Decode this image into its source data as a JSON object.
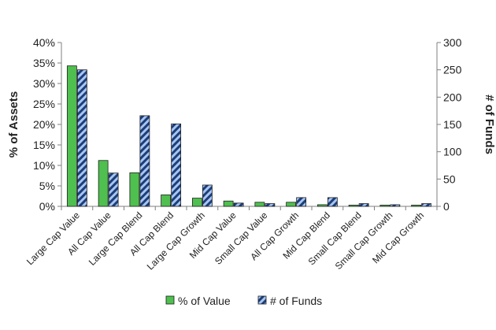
{
  "chart_data": {
    "type": "bar",
    "categories": [
      "Large Cap Value",
      "All Cap Value",
      "Large Cap Blend",
      "All Cap Blend",
      "Large Cap Growth",
      "Mid Cap Value",
      "Small Cap Value",
      "All Cap Growth",
      "Mid Cap Blend",
      "Small Cap Blend",
      "Small Cap Growth",
      "Mid Cap Growth"
    ],
    "series": [
      {
        "name": "% of Value",
        "axis": "left",
        "color": "#4fbf4f",
        "values": [
          34.3,
          11.2,
          8.2,
          2.8,
          2.0,
          1.3,
          1.0,
          1.0,
          0.4,
          0.3,
          0.3,
          0.3
        ]
      },
      {
        "name": "# of Funds",
        "axis": "right",
        "color": "#7aa0e0",
        "pattern": "diagonal-stripes",
        "values": [
          250,
          61,
          166,
          151,
          39,
          6,
          5,
          16,
          16,
          5,
          3,
          5
        ]
      }
    ],
    "ylabel": "% of Assets",
    "ylabel_right": "# of Funds",
    "ylim": [
      0,
      40
    ],
    "ylim_right": [
      0,
      300
    ],
    "yticks": [
      "0%",
      "5%",
      "10%",
      "15%",
      "20%",
      "25%",
      "30%",
      "35%",
      "40%"
    ],
    "yticks_right": [
      "0",
      "50",
      "100",
      "150",
      "200",
      "250",
      "300"
    ],
    "grid": false,
    "legend_position": "bottom"
  }
}
